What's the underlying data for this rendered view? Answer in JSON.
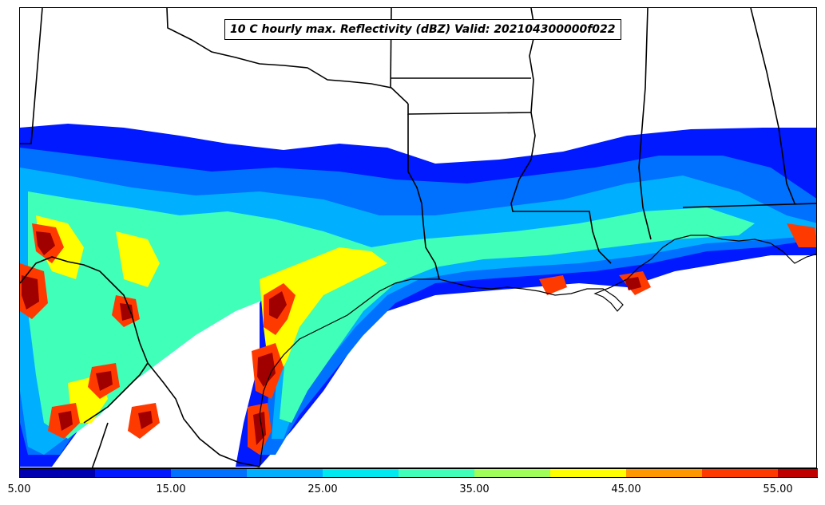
{
  "map": {
    "title": "10 C hourly max. Reflectivity (dBZ) Valid: 202104300000f022",
    "variable": "hourly max. Reflectivity",
    "units": "dBZ",
    "colorbar": {
      "ticks": [
        "5.00",
        "15.00",
        "25.00",
        "35.00",
        "45.00",
        "55.00"
      ],
      "min": 5,
      "max": 55,
      "step": 5,
      "extend": "max",
      "colors": [
        "#0000b0",
        "#0019ff",
        "#0070ff",
        "#00b0ff",
        "#00e8f0",
        "#40ffb8",
        "#a0ff58",
        "#ffff00",
        "#ff9800",
        "#ff3a00",
        "#c00000",
        "#800000"
      ]
    }
  }
}
